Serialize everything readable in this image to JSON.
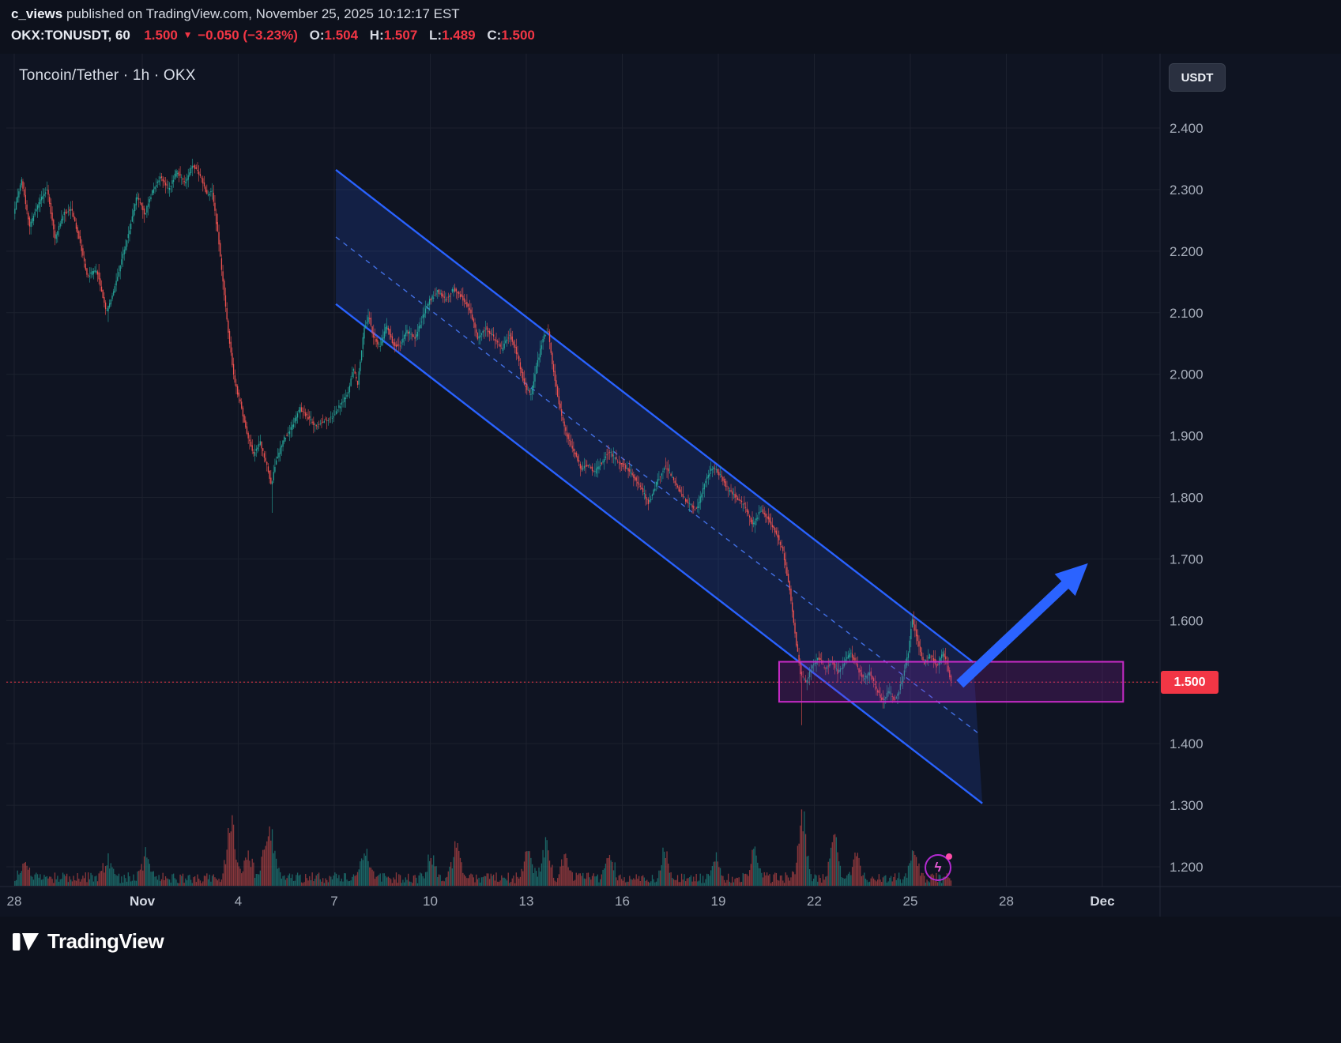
{
  "publish_bar": {
    "author": "c_views",
    "rest": " published on TradingView.com, November 25, 2025 10:12:17 EST"
  },
  "symbol_bar": {
    "symbol": "OKX:TONUSDT,",
    "interval": "60",
    "last": "1.500",
    "direction": "▼",
    "change": "−0.050 (−3.23%)",
    "ohlc": [
      {
        "label": "O:",
        "value": "1.504"
      },
      {
        "label": "H:",
        "value": "1.507"
      },
      {
        "label": "L:",
        "value": "1.489"
      },
      {
        "label": "C:",
        "value": "1.500"
      }
    ]
  },
  "chart_header": {
    "title": "Toncoin/Tether · 1h · OKX",
    "currency_button": "USDT"
  },
  "price_label": {
    "value": "1.500"
  },
  "footer": {
    "brand": "TradingView"
  },
  "icons": {
    "flash": "ϟ"
  },
  "colors": {
    "bg": "#0f1422",
    "grid": "#1c212e",
    "separator": "#232938",
    "up": "#26a69a",
    "down": "#ef5350",
    "axis_text": "#a6adba",
    "accent_blue": "#2962ff",
    "magenta": "#c92bc9",
    "red": "#f23645"
  },
  "axes": {
    "price_ticks": [
      {
        "label": "2.400",
        "value": 2.4
      },
      {
        "label": "2.300",
        "value": 2.3
      },
      {
        "label": "2.200",
        "value": 2.2
      },
      {
        "label": "2.100",
        "value": 2.1
      },
      {
        "label": "2.000",
        "value": 2.0
      },
      {
        "label": "1.900",
        "value": 1.9
      },
      {
        "label": "1.800",
        "value": 1.8
      },
      {
        "label": "1.700",
        "value": 1.7
      },
      {
        "label": "1.600",
        "value": 1.6
      },
      {
        "label": "1.500",
        "value": 1.5
      },
      {
        "label": "1.400",
        "value": 1.4
      },
      {
        "label": "1.300",
        "value": 1.3
      },
      {
        "label": "1.200",
        "value": 1.2
      }
    ],
    "time_ticks": [
      {
        "label": "28",
        "day": 0
      },
      {
        "label": "Nov",
        "day": 4,
        "major": true
      },
      {
        "label": "4",
        "day": 7
      },
      {
        "label": "7",
        "day": 10
      },
      {
        "label": "10",
        "day": 13
      },
      {
        "label": "13",
        "day": 16
      },
      {
        "label": "16",
        "day": 19
      },
      {
        "label": "19",
        "day": 22
      },
      {
        "label": "22",
        "day": 25
      },
      {
        "label": "25",
        "day": 28
      },
      {
        "label": "28",
        "day": 31
      },
      {
        "label": "Dec",
        "day": 34,
        "major": true
      }
    ]
  },
  "chart_data": {
    "type": "candlestick",
    "pair": "TONUSDT",
    "exchange": "OKX",
    "interval": "1h",
    "title": "Toncoin/Tether · 1h · OKX",
    "visible_price_range": [
      1.17,
      2.52
    ],
    "visible_time_range": [
      "Oct 28",
      "Dec 1"
    ],
    "ohlc_current": {
      "open": 1.504,
      "high": 1.507,
      "low": 1.489,
      "close": 1.5
    },
    "current_price": 1.5,
    "keyframes": [
      [
        0.0,
        2.26
      ],
      [
        0.25,
        2.315
      ],
      [
        0.5,
        2.24
      ],
      [
        0.8,
        2.28
      ],
      [
        1.05,
        2.3
      ],
      [
        1.3,
        2.22
      ],
      [
        1.55,
        2.26
      ],
      [
        1.8,
        2.27
      ],
      [
        2.05,
        2.22
      ],
      [
        2.3,
        2.16
      ],
      [
        2.6,
        2.17
      ],
      [
        2.9,
        2.1
      ],
      [
        3.1,
        2.13
      ],
      [
        3.35,
        2.18
      ],
      [
        3.6,
        2.23
      ],
      [
        3.85,
        2.29
      ],
      [
        4.1,
        2.26
      ],
      [
        4.35,
        2.3
      ],
      [
        4.6,
        2.32
      ],
      [
        4.85,
        2.3
      ],
      [
        5.1,
        2.33
      ],
      [
        5.35,
        2.31
      ],
      [
        5.6,
        2.34
      ],
      [
        5.85,
        2.32
      ],
      [
        6.05,
        2.29
      ],
      [
        6.2,
        2.3
      ],
      [
        6.4,
        2.22
      ],
      [
        6.6,
        2.12
      ],
      [
        6.75,
        2.05
      ],
      [
        6.9,
        1.99
      ],
      [
        7.1,
        1.95
      ],
      [
        7.3,
        1.9
      ],
      [
        7.5,
        1.87
      ],
      [
        7.7,
        1.89
      ],
      [
        7.9,
        1.855
      ],
      [
        8.05,
        1.82
      ],
      [
        8.2,
        1.86
      ],
      [
        8.45,
        1.895
      ],
      [
        8.7,
        1.915
      ],
      [
        8.95,
        1.945
      ],
      [
        9.2,
        1.93
      ],
      [
        9.45,
        1.915
      ],
      [
        9.7,
        1.925
      ],
      [
        9.95,
        1.93
      ],
      [
        10.2,
        1.95
      ],
      [
        10.45,
        1.97
      ],
      [
        10.6,
        2.01
      ],
      [
        10.75,
        1.985
      ],
      [
        10.95,
        2.075
      ],
      [
        11.1,
        2.095
      ],
      [
        11.25,
        2.06
      ],
      [
        11.45,
        2.045
      ],
      [
        11.65,
        2.08
      ],
      [
        11.85,
        2.05
      ],
      [
        12.05,
        2.045
      ],
      [
        12.3,
        2.07
      ],
      [
        12.55,
        2.06
      ],
      [
        12.8,
        2.095
      ],
      [
        13.0,
        2.12
      ],
      [
        13.25,
        2.135
      ],
      [
        13.5,
        2.12
      ],
      [
        13.75,
        2.14
      ],
      [
        14.0,
        2.125
      ],
      [
        14.25,
        2.105
      ],
      [
        14.5,
        2.06
      ],
      [
        14.75,
        2.075
      ],
      [
        15.0,
        2.06
      ],
      [
        15.25,
        2.04
      ],
      [
        15.5,
        2.065
      ],
      [
        15.75,
        2.03
      ],
      [
        15.95,
        1.985
      ],
      [
        16.15,
        1.965
      ],
      [
        16.35,
        2.015
      ],
      [
        16.55,
        2.06
      ],
      [
        16.7,
        2.07
      ],
      [
        16.85,
        2.01
      ],
      [
        17.05,
        1.95
      ],
      [
        17.25,
        1.905
      ],
      [
        17.5,
        1.875
      ],
      [
        17.75,
        1.845
      ],
      [
        17.95,
        1.855
      ],
      [
        18.15,
        1.84
      ],
      [
        18.35,
        1.855
      ],
      [
        18.6,
        1.875
      ],
      [
        18.85,
        1.86
      ],
      [
        19.1,
        1.85
      ],
      [
        19.35,
        1.835
      ],
      [
        19.6,
        1.815
      ],
      [
        19.85,
        1.79
      ],
      [
        20.1,
        1.825
      ],
      [
        20.35,
        1.85
      ],
      [
        20.6,
        1.83
      ],
      [
        20.85,
        1.805
      ],
      [
        21.1,
        1.79
      ],
      [
        21.35,
        1.78
      ],
      [
        21.6,
        1.825
      ],
      [
        21.85,
        1.85
      ],
      [
        22.1,
        1.835
      ],
      [
        22.35,
        1.81
      ],
      [
        22.6,
        1.8
      ],
      [
        22.85,
        1.785
      ],
      [
        23.1,
        1.755
      ],
      [
        23.35,
        1.78
      ],
      [
        23.6,
        1.765
      ],
      [
        23.85,
        1.74
      ],
      [
        24.05,
        1.71
      ],
      [
        24.25,
        1.65
      ],
      [
        24.45,
        1.565
      ],
      [
        24.6,
        1.51
      ],
      [
        24.75,
        1.5
      ],
      [
        24.95,
        1.525
      ],
      [
        25.15,
        1.54
      ],
      [
        25.35,
        1.52
      ],
      [
        25.55,
        1.535
      ],
      [
        25.75,
        1.515
      ],
      [
        25.95,
        1.53
      ],
      [
        26.15,
        1.55
      ],
      [
        26.35,
        1.525
      ],
      [
        26.55,
        1.505
      ],
      [
        26.75,
        1.515
      ],
      [
        26.95,
        1.49
      ],
      [
        27.15,
        1.47
      ],
      [
        27.35,
        1.485
      ],
      [
        27.55,
        1.47
      ],
      [
        27.75,
        1.5
      ],
      [
        27.95,
        1.545
      ],
      [
        28.08,
        1.605
      ],
      [
        28.25,
        1.565
      ],
      [
        28.45,
        1.53
      ],
      [
        28.65,
        1.545
      ],
      [
        28.85,
        1.525
      ],
      [
        29.05,
        1.55
      ],
      [
        29.3,
        1.5
      ]
    ],
    "wick_events": [
      {
        "day": 2.9,
        "low": 2.085
      },
      {
        "day": 8.05,
        "low": 1.775
      },
      {
        "day": 24.6,
        "low": 1.43
      },
      {
        "day": 28.08,
        "high": 1.615
      }
    ],
    "volume_spikes": [
      [
        0.3,
        25
      ],
      [
        2.9,
        30
      ],
      [
        4.1,
        35
      ],
      [
        6.75,
        90
      ],
      [
        7.3,
        38
      ],
      [
        7.85,
        48
      ],
      [
        8.05,
        52
      ],
      [
        10.95,
        42
      ],
      [
        13.0,
        40
      ],
      [
        13.8,
        52
      ],
      [
        16.05,
        40
      ],
      [
        16.6,
        58
      ],
      [
        17.2,
        36
      ],
      [
        18.6,
        34
      ],
      [
        20.3,
        40
      ],
      [
        21.9,
        36
      ],
      [
        23.1,
        46
      ],
      [
        24.6,
        95
      ],
      [
        25.6,
        62
      ],
      [
        26.3,
        36
      ],
      [
        28.1,
        44
      ]
    ],
    "channel": {
      "top": {
        "d1": 10.05,
        "p1": 2.332,
        "d2": 29.97,
        "p2": 1.532
      },
      "bottom": {
        "d1": 10.05,
        "p1": 2.114,
        "d2": 30.25,
        "p2": 1.303
      },
      "stroke": "#2962ff",
      "mid_stroke": "#4a7dff",
      "fill": "rgba(41,98,255,0.16)"
    },
    "support_box": {
      "day_start": 23.9,
      "day_end": 34.65,
      "price_top": 1.533,
      "price_bottom": 1.468,
      "stroke": "#c92bc9",
      "fill": "rgba(148,32,168,0.22)"
    },
    "arrow": {
      "tail_day": 29.55,
      "tail_price": 1.497,
      "head_day": 33.55,
      "head_price": 1.693,
      "color": "#2b63ff",
      "width": 13
    }
  }
}
